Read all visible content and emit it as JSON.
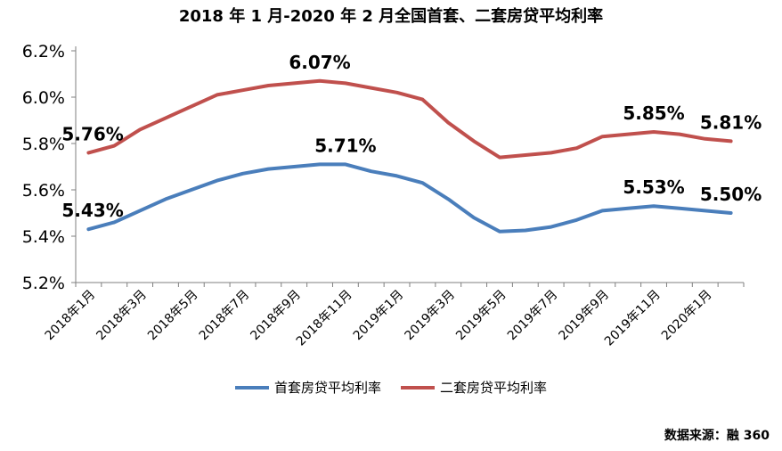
{
  "chart_data": {
    "type": "line",
    "title": "2018 年 1 月-2020 年 2 月全国首套、二套房贷平均利率",
    "categories": [
      "2018年1月",
      "2018年2月",
      "2018年3月",
      "2018年4月",
      "2018年5月",
      "2018年6月",
      "2018年7月",
      "2018年8月",
      "2018年9月",
      "2018年10月",
      "2018年11月",
      "2018年12月",
      "2019年1月",
      "2019年2月",
      "2019年3月",
      "2019年4月",
      "2019年5月",
      "2019年6月",
      "2019年7月",
      "2019年8月",
      "2019年9月",
      "2019年10月",
      "2019年11月",
      "2019年12月",
      "2020年1月",
      "2020年2月"
    ],
    "tick_labels": [
      "2018年1月",
      "2018年3月",
      "2018年5月",
      "2018年7月",
      "2018年9月",
      "2018年11月",
      "2019年1月",
      "2019年3月",
      "2019年5月",
      "2019年7月",
      "2019年9月",
      "2019年11月",
      "2020年1月"
    ],
    "yticks": [
      "5.2%",
      "5.4%",
      "5.6%",
      "5.8%",
      "6.0%",
      "6.2%"
    ],
    "ylim": [
      5.2,
      6.2
    ],
    "series": [
      {
        "name": "首套房贷平均利率",
        "color": "#4A7EBB",
        "values": [
          5.43,
          5.46,
          5.51,
          5.56,
          5.6,
          5.64,
          5.67,
          5.69,
          5.7,
          5.71,
          5.71,
          5.68,
          5.66,
          5.63,
          5.56,
          5.48,
          5.42,
          5.425,
          5.44,
          5.47,
          5.51,
          5.52,
          5.53,
          5.52,
          5.51,
          5.5
        ]
      },
      {
        "name": "二套房贷平均利率",
        "color": "#C0504D",
        "values": [
          5.76,
          5.79,
          5.86,
          5.91,
          5.96,
          6.01,
          6.03,
          6.05,
          6.06,
          6.07,
          6.06,
          6.04,
          6.02,
          5.99,
          5.89,
          5.81,
          5.74,
          5.75,
          5.76,
          5.78,
          5.83,
          5.84,
          5.85,
          5.84,
          5.82,
          5.81
        ]
      }
    ],
    "annotations": [
      {
        "series": 1,
        "index": 0,
        "text": "5.76%"
      },
      {
        "series": 1,
        "index": 9,
        "text": "6.07%"
      },
      {
        "series": 1,
        "index": 22,
        "text": "5.85%"
      },
      {
        "series": 1,
        "index": 25,
        "text": "5.81%"
      },
      {
        "series": 0,
        "index": 0,
        "text": "5.43%"
      },
      {
        "series": 0,
        "index": 10,
        "text": "5.71%"
      },
      {
        "series": 0,
        "index": 22,
        "text": "5.53%"
      },
      {
        "series": 0,
        "index": 25,
        "text": "5.50%"
      }
    ],
    "legend_position": "bottom",
    "grid": false
  },
  "source_note": "数据来源：融 360"
}
